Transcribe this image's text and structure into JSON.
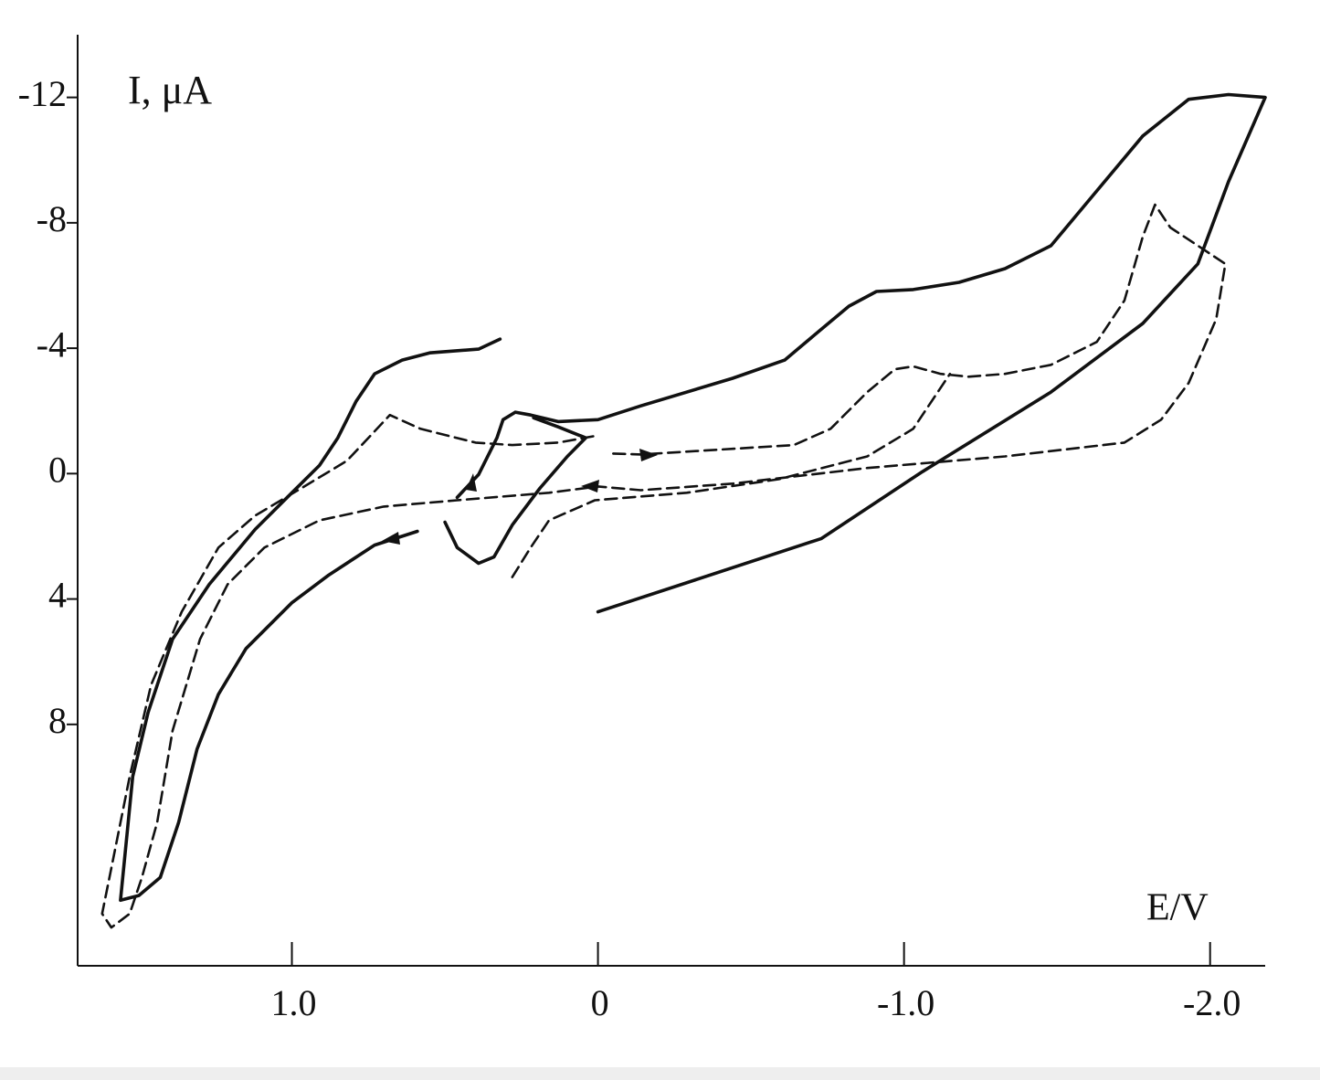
{
  "chart_data": {
    "type": "line",
    "ylabel": "I, μA",
    "xlabel": "E/V",
    "xlim": [
      1.7,
      -2.18
    ],
    "ylim": [
      15.7,
      -14.0
    ],
    "xticks": [
      {
        "value": 1,
        "label": "1.0"
      },
      0,
      {
        "value": -1,
        "label": "-1.0"
      },
      {
        "value": -2,
        "label": "-2.0"
      }
    ],
    "yticks": [
      -12,
      -8,
      -4,
      0,
      4,
      8
    ],
    "series": [
      {
        "color": "#111111",
        "style": "solid",
        "x": [
          0,
          -0.73,
          -1.06,
          -1.48,
          -1.78,
          -1.96,
          -2.06,
          -2.18,
          -2.06,
          -1.93,
          -1.78,
          -1.63,
          -1.48,
          -1.33,
          -1.18,
          -1.03,
          -0.91,
          -0.82,
          -0.73,
          -0.61,
          -0.44,
          -0.14,
          0,
          0.13,
          0.22,
          0.27,
          0.31,
          0.33,
          0.39,
          0.46,
          null,
          0.5,
          0.46,
          0.39,
          0.34,
          0.28,
          0.19,
          0.1,
          0.04,
          0.13,
          0.21,
          null,
          0.32,
          0.39,
          0.55,
          0.64,
          0.73,
          0.79,
          0.85,
          0.91,
          1.0,
          1.12,
          1.27,
          1.39,
          1.47,
          1.52,
          1.56,
          1.5,
          1.43,
          1.37,
          1.31,
          1.24,
          1.15,
          1.0,
          0.88,
          0.73,
          0.59
        ],
        "values": [
          4.41,
          2.07,
          -0.06,
          -2.6,
          -4.79,
          -6.69,
          -9.31,
          -12.0,
          -12.09,
          -11.94,
          -10.77,
          -9.02,
          -7.27,
          -6.54,
          -6.1,
          -5.87,
          -5.81,
          -5.34,
          -4.61,
          -3.62,
          -3.04,
          -2.16,
          -1.72,
          -1.66,
          -1.87,
          -1.96,
          -1.72,
          -1.14,
          0.03,
          0.76,
          null,
          1.55,
          2.36,
          2.86,
          2.66,
          1.64,
          0.47,
          -0.55,
          -1.14,
          -1.49,
          -1.78,
          null,
          -4.29,
          -3.97,
          -3.85,
          -3.62,
          -3.18,
          -2.31,
          -1.14,
          -0.26,
          0.61,
          1.78,
          3.53,
          5.28,
          7.62,
          9.66,
          13.61,
          13.46,
          12.88,
          11.12,
          8.79,
          7.04,
          5.58,
          4.12,
          3.24,
          2.28,
          1.84
        ]
      },
      {
        "color": "#111111",
        "style": "dashed",
        "x": [
          -0.05,
          -0.14,
          -0.44,
          -0.64,
          -0.76,
          -0.88,
          -0.97,
          -1.03,
          -1.12,
          -1.21,
          -1.33,
          -1.48,
          -1.63,
          -1.72,
          -1.78,
          -1.82,
          -1.87,
          -1.96,
          -2.05,
          -2.02,
          -1.93,
          -1.84,
          -1.72,
          -1.33,
          -0.88,
          -0.44,
          -0.14,
          0,
          0.16,
          0.46,
          0.7,
          0.91,
          1.09,
          1.21,
          1.3,
          1.39,
          1.44,
          1.49,
          1.53,
          1.59,
          1.62,
          1.59,
          1.53,
          1.46,
          1.36,
          1.24,
          1.12,
          0.97,
          0.82,
          0.68,
          0.58,
          0.4,
          0.28,
          0.13,
          0.01,
          null,
          0.28,
          0.22,
          0.16,
          0.01,
          -0.29,
          -0.59,
          -0.88,
          -1.03,
          -1.15
        ],
        "values": [
          -0.64,
          -0.61,
          -0.79,
          -0.91,
          -1.43,
          -2.6,
          -3.33,
          -3.42,
          -3.18,
          -3.09,
          -3.18,
          -3.47,
          -4.2,
          -5.52,
          -7.56,
          -8.58,
          -7.85,
          -7.27,
          -6.69,
          -4.93,
          -2.89,
          -1.72,
          -0.99,
          -0.55,
          -0.18,
          0.32,
          0.53,
          0.41,
          0.61,
          0.85,
          1.05,
          1.49,
          2.36,
          3.53,
          5.28,
          8.2,
          11.12,
          12.88,
          14.04,
          14.48,
          14.04,
          12.58,
          9.66,
          6.74,
          4.41,
          2.36,
          1.34,
          0.47,
          -0.41,
          -1.87,
          -1.43,
          -0.99,
          -0.91,
          -0.99,
          -1.2,
          null,
          3.3,
          2.36,
          1.49,
          0.85,
          0.61,
          0.18,
          -0.55,
          -1.43,
          -3.18
        ]
      }
    ]
  }
}
